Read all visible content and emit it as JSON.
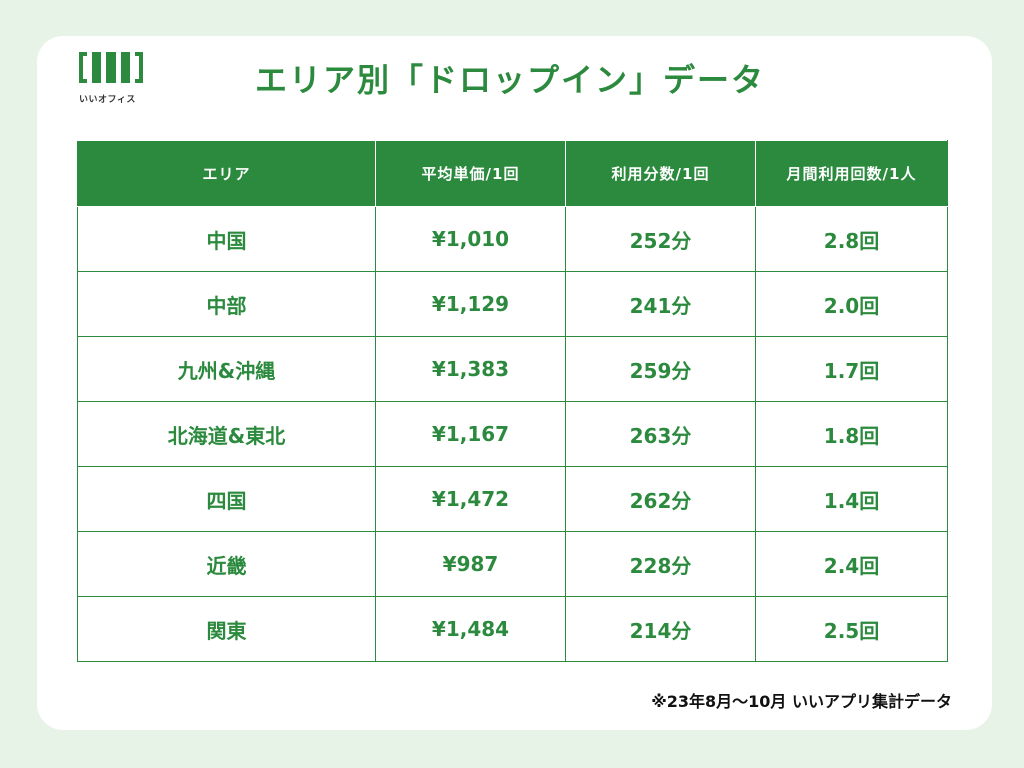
{
  "colors": {
    "brand_green": "#2c8a3e",
    "background": "#e8f3e8",
    "card": "#ffffff"
  },
  "logo": {
    "icon": "iioffice-logo-icon",
    "text": "いいオフィス"
  },
  "title": "エリア別「ドロップイン」データ",
  "table": {
    "headers": [
      "エリア",
      "平均単価/1回",
      "利用分数/1回",
      "月間利用回数/1人"
    ],
    "rows": [
      [
        "中国",
        "¥1,010",
        "252分",
        "2.8回"
      ],
      [
        "中部",
        "¥1,129",
        "241分",
        "2.0回"
      ],
      [
        "九州&沖縄",
        "¥1,383",
        "259分",
        "1.7回"
      ],
      [
        "北海道&東北",
        "¥1,167",
        "263分",
        "1.8回"
      ],
      [
        "四国",
        "¥1,472",
        "262分",
        "1.4回"
      ],
      [
        "近畿",
        "¥987",
        "228分",
        "2.4回"
      ],
      [
        "関東",
        "¥1,484",
        "214分",
        "2.5回"
      ]
    ]
  },
  "footnote": "※23年8月～10月 いいアプリ集計データ"
}
